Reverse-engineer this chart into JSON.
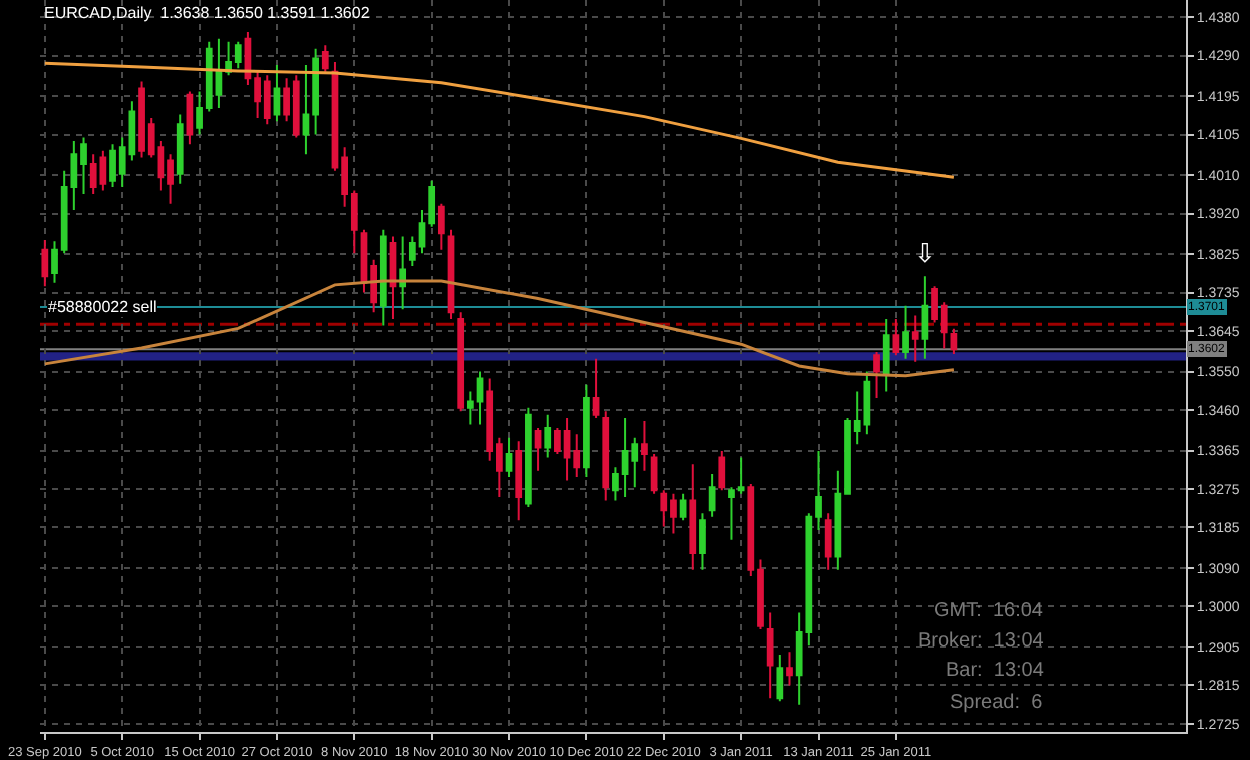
{
  "chart_data": {
    "type": "candlestick",
    "title": "EURCAD,Daily  1.3638 1.3650 1.3591 1.3602",
    "categories": [
      "23 Sep 2010",
      null,
      null,
      null,
      null,
      null,
      null,
      null,
      "5 Oct 2010",
      null,
      null,
      null,
      null,
      null,
      null,
      null,
      "15 Oct 2010",
      null,
      null,
      null,
      null,
      null,
      null,
      null,
      "27 Oct 2010",
      null,
      null,
      null,
      null,
      null,
      null,
      null,
      "8 Nov 2010",
      null,
      null,
      null,
      null,
      null,
      null,
      null,
      "18 Nov 2010",
      null,
      null,
      null,
      null,
      null,
      null,
      null,
      "30 Nov 2010",
      null,
      null,
      null,
      null,
      null,
      null,
      null,
      "10 Dec 2010",
      null,
      null,
      null,
      null,
      null,
      null,
      null,
      "22 Dec 2010",
      null,
      null,
      null,
      null,
      null,
      null,
      null,
      "3 Jan 2011",
      null,
      null,
      null,
      null,
      null,
      null,
      null,
      "13 Jan 2011",
      null,
      null,
      null,
      null,
      null,
      null,
      null,
      "25 Jan 2011",
      null,
      null,
      null,
      null,
      null,
      null,
      null,
      null,
      null,
      null,
      null,
      null,
      null,
      null,
      null,
      null,
      null,
      null,
      null,
      null,
      null,
      null,
      null,
      null,
      null,
      null,
      null,
      null,
      null,
      null
    ],
    "ohlc": [
      [
        1.3835,
        1.3858,
        1.375,
        1.3773
      ],
      [
        1.3781,
        1.3855,
        1.3758,
        1.3835
      ],
      [
        1.3835,
        1.402,
        1.3827,
        1.3982
      ],
      [
        1.3982,
        1.409,
        1.3928,
        1.4059
      ],
      [
        1.4036,
        1.4098,
        1.3966,
        1.4082
      ],
      [
        1.4036,
        1.4059,
        1.3966,
        1.3982
      ],
      [
        1.4051,
        1.4067,
        1.3974,
        1.399
      ],
      [
        1.3997,
        1.4082,
        1.3982,
        1.4067
      ],
      [
        1.4013,
        1.4098,
        1.3982,
        1.4075
      ],
      [
        1.4059,
        1.4183,
        1.4044,
        1.4159
      ],
      [
        1.4213,
        1.4229,
        1.4051,
        1.4067
      ],
      [
        1.4129,
        1.4144,
        1.4051,
        1.4059
      ],
      [
        1.4075,
        1.409,
        1.3974,
        1.4005
      ],
      [
        1.4044,
        1.4059,
        1.3943,
        1.399
      ],
      [
        1.4013,
        1.4152,
        1.399,
        1.4129
      ],
      [
        1.4198,
        1.4206,
        1.4082,
        1.4105
      ],
      [
        1.4121,
        1.4206,
        1.4105,
        1.4167
      ],
      [
        1.4167,
        1.4322,
        1.4159,
        1.4306
      ],
      [
        1.4198,
        1.4329,
        1.4167,
        1.4252
      ],
      [
        1.4252,
        1.4322,
        1.4244,
        1.4275
      ],
      [
        1.4275,
        1.4322,
        1.426,
        1.4314
      ],
      [
        1.4329,
        1.4345,
        1.4221,
        1.4237
      ],
      [
        1.4237,
        1.4252,
        1.4144,
        1.4183
      ],
      [
        1.4229,
        1.4244,
        1.4129,
        1.4144
      ],
      [
        1.4152,
        1.4268,
        1.4136,
        1.4213
      ],
      [
        1.4213,
        1.4237,
        1.4136,
        1.4152
      ],
      [
        1.4229,
        1.4244,
        1.4098,
        1.4105
      ],
      [
        1.4105,
        1.4268,
        1.4059,
        1.4152
      ],
      [
        1.4152,
        1.4306,
        1.4105,
        1.4283
      ],
      [
        1.4298,
        1.4314,
        1.4252,
        1.426
      ],
      [
        1.4252,
        1.4275,
        1.402,
        1.4028
      ],
      [
        1.4051,
        1.4075,
        1.3936,
        1.3966
      ],
      [
        1.3966,
        1.3974,
        1.3827,
        1.3882
      ],
      [
        1.3874,
        1.3882,
        1.3735,
        1.3758
      ],
      [
        1.3797,
        1.3812,
        1.3689,
        1.3712
      ],
      [
        1.3704,
        1.3882,
        1.3658,
        1.3866
      ],
      [
        1.3851,
        1.3866,
        1.3673,
        1.375
      ],
      [
        1.375,
        1.3866,
        1.3696,
        1.3789
      ],
      [
        1.3812,
        1.3866,
        1.3797,
        1.3851
      ],
      [
        1.3843,
        1.3928,
        1.3827,
        1.3897
      ],
      [
        1.3897,
        1.3997,
        1.3889,
        1.3982
      ],
      [
        1.3936,
        1.3943,
        1.3835,
        1.3874
      ],
      [
        1.3866,
        1.3882,
        1.3673,
        1.3689
      ],
      [
        1.3673,
        1.3689,
        1.3457,
        1.3465
      ],
      [
        1.3465,
        1.3503,
        1.3426,
        1.348
      ],
      [
        1.348,
        1.355,
        1.3426,
        1.3534
      ],
      [
        1.3503,
        1.3534,
        1.3341,
        1.3364
      ],
      [
        1.338,
        1.3395,
        1.3256,
        1.3318
      ],
      [
        1.3318,
        1.3395,
        1.3303,
        1.3357
      ],
      [
        1.3364,
        1.3387,
        1.3202,
        1.3256
      ],
      [
        1.3241,
        1.3465,
        1.3233,
        1.3449
      ],
      [
        1.3411,
        1.3418,
        1.3318,
        1.3372
      ],
      [
        1.3372,
        1.3449,
        1.3349,
        1.3418
      ],
      [
        1.3411,
        1.3418,
        1.3357,
        1.3364
      ],
      [
        1.3411,
        1.3441,
        1.3295,
        1.3349
      ],
      [
        1.3364,
        1.3403,
        1.3303,
        1.3326
      ],
      [
        1.3326,
        1.3519,
        1.3303,
        1.3488
      ],
      [
        1.3488,
        1.358,
        1.3441,
        1.3449
      ],
      [
        1.3441,
        1.3457,
        1.3248,
        1.3279
      ],
      [
        1.3272,
        1.3326,
        1.3248,
        1.331
      ],
      [
        1.331,
        1.3441,
        1.3256,
        1.3364
      ],
      [
        1.3341,
        1.3395,
        1.3279,
        1.338
      ],
      [
        1.338,
        1.3434,
        1.3318,
        1.3357
      ],
      [
        1.3349,
        1.3357,
        1.3264,
        1.3272
      ],
      [
        1.3264,
        1.3272,
        1.3187,
        1.3225
      ],
      [
        1.3248,
        1.3264,
        1.3171,
        1.321
      ],
      [
        1.321,
        1.3264,
        1.3202,
        1.3248
      ],
      [
        1.3248,
        1.3333,
        1.3086,
        1.3125
      ],
      [
        1.3125,
        1.3218,
        1.3086,
        1.3202
      ],
      [
        1.3225,
        1.331,
        1.321,
        1.3279
      ],
      [
        1.3349,
        1.3364,
        1.3272,
        1.3279
      ],
      [
        1.3256,
        1.3279,
        1.3156,
        1.3272
      ],
      [
        1.3272,
        1.3349,
        1.3264,
        1.3279
      ],
      [
        1.3279,
        1.3287,
        1.3071,
        1.3086
      ],
      [
        1.3086,
        1.311,
        1.2947,
        1.2955
      ],
      [
        1.2947,
        1.2986,
        1.2785,
        1.2862
      ],
      [
        1.2785,
        1.2886,
        1.2778,
        1.2855
      ],
      [
        1.2855,
        1.2893,
        1.2815,
        1.2839
      ],
      [
        1.2839,
        1.2986,
        1.277,
        1.294
      ],
      [
        1.294,
        1.3218,
        1.2909,
        1.321
      ],
      [
        1.321,
        1.3364,
        1.3179,
        1.3256
      ],
      [
        1.3202,
        1.3218,
        1.3086,
        1.3117
      ],
      [
        1.3117,
        1.3318,
        1.3086,
        1.3264
      ],
      [
        1.3264,
        1.3441,
        1.3264,
        1.3434
      ],
      [
        1.3411,
        1.3503,
        1.338,
        1.3434
      ],
      [
        1.3426,
        1.355,
        1.3403,
        1.3526
      ],
      [
        1.3588,
        1.3596,
        1.3488,
        1.355
      ],
      [
        1.3542,
        1.3673,
        1.3503,
        1.3635
      ],
      [
        1.3635,
        1.3673,
        1.3588,
        1.3596
      ],
      [
        1.3596,
        1.3704,
        1.358,
        1.3642
      ],
      [
        1.3642,
        1.3681,
        1.3573,
        1.3627
      ],
      [
        1.3627,
        1.3773,
        1.358,
        1.3704
      ],
      [
        1.3743,
        1.375,
        1.3665,
        1.3673
      ],
      [
        1.3704,
        1.3712,
        1.3604,
        1.3642
      ],
      [
        1.3638,
        1.365,
        1.3591,
        1.3602
      ],
      null,
      null,
      null,
      null,
      null,
      null,
      null,
      null,
      null,
      null,
      null,
      null,
      null,
      null,
      null,
      null,
      null,
      null,
      null,
      null,
      null,
      null,
      null,
      null
    ],
    "colors": [
      "#e0103c",
      "#2ed12e",
      "#2ed12e",
      "#2ed12e",
      "#2ed12e",
      "#e0103c",
      "#e0103c",
      "#2ed12e",
      "#2ed12e",
      "#2ed12e",
      "#e0103c",
      "#e0103c",
      "#e0103c",
      "#e0103c",
      "#2ed12e",
      "#e0103c",
      "#2ed12e",
      "#2ed12e",
      "#2ed12e",
      "#2ed12e",
      "#2ed12e",
      "#e0103c",
      "#e0103c",
      "#e0103c",
      "#2ed12e",
      "#e0103c",
      "#e0103c",
      "#2ed12e",
      "#2ed12e",
      "#e0103c",
      "#e0103c",
      "#e0103c",
      "#e0103c",
      "#e0103c",
      "#e0103c",
      "#2ed12e",
      "#e0103c",
      "#2ed12e",
      "#2ed12e",
      "#2ed12e",
      "#2ed12e",
      "#e0103c",
      "#e0103c",
      "#e0103c",
      "#2ed12e",
      "#2ed12e",
      "#e0103c",
      "#e0103c",
      "#2ed12e",
      "#e0103c",
      "#2ed12e",
      "#e0103c",
      "#2ed12e",
      "#e0103c",
      "#e0103c",
      "#e0103c",
      "#2ed12e",
      "#e0103c",
      "#e0103c",
      "#2ed12e",
      "#2ed12e",
      "#2ed12e",
      "#e0103c",
      "#e0103c",
      "#e0103c",
      "#e0103c",
      "#2ed12e",
      "#e0103c",
      "#2ed12e",
      "#2ed12e",
      "#e0103c",
      "#2ed12e",
      "#2ed12e",
      "#e0103c",
      "#e0103c",
      "#e0103c",
      "#2ed12e",
      "#e0103c",
      "#2ed12e",
      "#2ed12e",
      "#2ed12e",
      "#e0103c",
      "#2ed12e",
      "#2ed12e",
      "#2ed12e",
      "#2ed12e",
      "#e0103c",
      "#2ed12e",
      "#e0103c",
      "#2ed12e",
      "#e0103c",
      "#2ed12e",
      "#e0103c",
      "#e0103c",
      "#e0103c",
      null,
      null,
      null,
      null,
      null,
      null,
      null,
      null,
      null,
      null,
      null,
      null,
      null,
      null,
      null,
      null,
      null,
      null,
      null,
      null,
      null,
      null,
      null,
      null
    ],
    "series": [
      {
        "type": "line",
        "color": "#f0a040",
        "values": [
          1.4272,
          null,
          null,
          null,
          null,
          null,
          null,
          null,
          null,
          null,
          1.4263,
          null,
          null,
          null,
          null,
          null,
          null,
          null,
          null,
          null,
          1.4254,
          null,
          null,
          null,
          null,
          null,
          null,
          null,
          null,
          null,
          1.4249,
          null,
          null,
          null,
          null,
          null,
          null,
          null,
          null,
          null,
          null,
          1.4226,
          null,
          null,
          null,
          null,
          null,
          null,
          null,
          null,
          null,
          1.4189,
          null,
          null,
          null,
          null,
          null,
          null,
          null,
          null,
          null,
          null,
          1.4147,
          null,
          null,
          null,
          null,
          null,
          null,
          null,
          null,
          null,
          1.4096,
          null,
          null,
          null,
          null,
          null,
          null,
          null,
          null,
          null,
          1.404,
          null,
          null,
          null,
          null,
          null,
          null,
          null,
          null,
          null,
          null,
          null,
          1.4005,
          null,
          null,
          null,
          null,
          null,
          null,
          null,
          null,
          null,
          null,
          null,
          null,
          null,
          null,
          null,
          null,
          null,
          null,
          null,
          null,
          null,
          null,
          null,
          null
        ]
      },
      {
        "type": "line",
        "color": "#c8843c",
        "values": [
          1.3568,
          null,
          null,
          null,
          null,
          null,
          null,
          null,
          null,
          null,
          1.3605,
          null,
          null,
          null,
          null,
          null,
          null,
          null,
          null,
          null,
          1.3651,
          null,
          null,
          null,
          null,
          null,
          null,
          null,
          null,
          null,
          1.3753,
          null,
          null,
          null,
          null,
          1.3762,
          null,
          null,
          null,
          null,
          null,
          1.3762,
          null,
          null,
          null,
          null,
          null,
          null,
          null,
          null,
          null,
          1.3721,
          null,
          null,
          null,
          null,
          null,
          null,
          null,
          null,
          null,
          null,
          1.3665,
          null,
          null,
          null,
          null,
          null,
          null,
          null,
          null,
          null,
          1.3614,
          null,
          null,
          null,
          null,
          null,
          1.3563,
          null,
          null,
          null,
          null,
          1.3545,
          null,
          null,
          null,
          null,
          null,
          1.354,
          null,
          null,
          null,
          null,
          1.3554,
          null,
          null,
          null,
          null,
          null,
          null,
          null,
          null,
          null,
          null,
          null,
          null,
          null,
          null,
          null,
          null,
          null,
          null,
          null,
          null,
          null,
          null,
          null,
          null
        ]
      }
    ],
    "ylim": [
      1.2706,
      1.442
    ],
    "yticks": [
      {
        "value": 1.438,
        "label": "1.4380"
      },
      {
        "value": 1.429,
        "label": "1.4290"
      },
      {
        "value": 1.4195,
        "label": "1.4195"
      },
      {
        "value": 1.4105,
        "label": "1.4105"
      },
      {
        "value": 1.401,
        "label": "1.4010"
      },
      {
        "value": 1.392,
        "label": "1.3920"
      },
      {
        "value": 1.3825,
        "label": "1.3825"
      },
      {
        "value": 1.3735,
        "label": "1.3735"
      },
      {
        "value": 1.3645,
        "label": "1.3645"
      },
      {
        "value": 1.355,
        "label": "1.3550"
      },
      {
        "value": 1.346,
        "label": "1.3460"
      },
      {
        "value": 1.3365,
        "label": "1.3365"
      },
      {
        "value": 1.3275,
        "label": "1.3275"
      },
      {
        "value": 1.3185,
        "label": "1.3185"
      },
      {
        "value": 1.309,
        "label": "1.3090"
      },
      {
        "value": 1.3,
        "label": "1.3000"
      },
      {
        "value": 1.2905,
        "label": "1.2905"
      },
      {
        "value": 1.2815,
        "label": "1.2815"
      },
      {
        "value": 1.2725,
        "label": "1.2725"
      }
    ],
    "grid": true,
    "ref_lines": [
      {
        "axis": "y",
        "value": 1.3701,
        "label": "1.3701",
        "color": "#1e8c96",
        "line_style": "solid"
      },
      {
        "axis": "y",
        "value": 1.3661,
        "label": "#58880022 sell",
        "color": "#a00000",
        "line_style": "dashed"
      },
      {
        "axis": "y",
        "value": 1.3602,
        "label": "1.3602",
        "color": "#808080",
        "line_style": "solid"
      }
    ],
    "bands": [
      {
        "axis": "y",
        "from": 1.3576,
        "to": 1.3595,
        "color": "#2a2aa8"
      }
    ],
    "annotations": [
      "⇩",
      "GMT:  16:04",
      "Broker:  13:04",
      "Bar:  13:04",
      "Spread:  6"
    ]
  }
}
